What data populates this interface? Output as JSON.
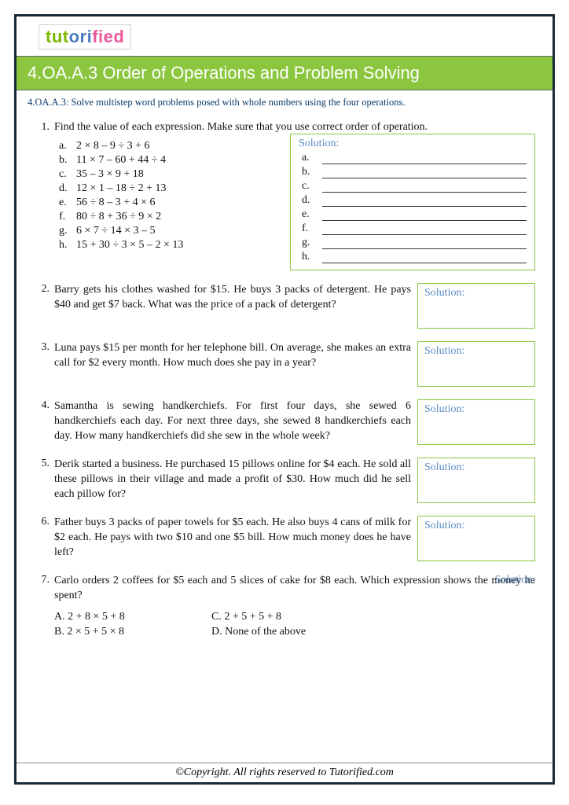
{
  "logo": {
    "part1": "tut",
    "part2": "ori",
    "part3": "fied"
  },
  "title": "4.OA.A.3 Order of Operations and Problem Solving",
  "standard": "4.OA.A.3: Solve multistep word problems posed with whole numbers using the four operations.",
  "solution_label": "Solution:",
  "q1": {
    "num": "1.",
    "prompt": "Find the value of each expression. Make sure that you use correct order of operation.",
    "items": [
      {
        "l": "a.",
        "e": "2 × 8 – 9 ÷ 3 + 6"
      },
      {
        "l": "b.",
        "e": "11 × 7 – 60 + 44 ÷ 4"
      },
      {
        "l": "c.",
        "e": "35 – 3 × 9 + 18"
      },
      {
        "l": "d.",
        "e": "12 × 1 – 18 ÷ 2 + 13"
      },
      {
        "l": "e.",
        "e": "56 ÷ 8 – 3 + 4 × 6"
      },
      {
        "l": "f.",
        "e": "80 ÷ 8 + 36 ÷ 9 × 2"
      },
      {
        "l": "g.",
        "e": "6 × 7 ÷ 14 × 3 – 5"
      },
      {
        "l": "h.",
        "e": "15 + 30 ÷ 3 × 5 – 2 × 13"
      }
    ],
    "ans_letters": [
      "a.",
      "b.",
      "c.",
      "d.",
      "e.",
      "f.",
      "g.",
      "h."
    ]
  },
  "q2": {
    "num": "2.",
    "text": "Barry gets his clothes washed for $15. He buys 3 packs of detergent. He pays $40 and get $7 back. What was the price of a pack of detergent?"
  },
  "q3": {
    "num": "3.",
    "text": "Luna pays $15 per month for her telephone bill. On average, she makes an extra call for $2 every month. How much does she pay in a year?"
  },
  "q4": {
    "num": "4.",
    "text": "Samantha is sewing handkerchiefs. For first four days, she sewed 6 handkerchiefs each day. For next three days, she sewed 8 handkerchiefs each day. How many handkerchiefs did she sew in the whole week?"
  },
  "q5": {
    "num": "5.",
    "text": "Derik started a business. He purchased 15 pillows online for $4 each. He sold all these pillows in their village and made a profit of $30. How much did he sell each pillow for?"
  },
  "q6": {
    "num": "6.",
    "text": "Father buys 3 packs of paper towels for $5 each. He also buys 4 cans of milk for $2 each. He pays with two $10 and one $5 bill. How much money does he have left?"
  },
  "q7": {
    "num": "7.",
    "text": "Carlo orders 2 coffees for $5 each and 5 slices of cake for $8 each. Which expression shows the money he spent?",
    "choices": {
      "A": "A. 2 + 8 × 5 + 8",
      "B": "B. 2 × 5 + 5 × 8",
      "C": "C. 2 + 5 + 5 + 8",
      "D": "D. None of the above"
    }
  },
  "footer": "©Copyright. All rights reserved to Tutorified.com",
  "colors": {
    "green": "#8cc63f",
    "blue_text": "#5a8bc4",
    "dark_blue": "#0a3a6a",
    "border": "#1a2a3a"
  }
}
